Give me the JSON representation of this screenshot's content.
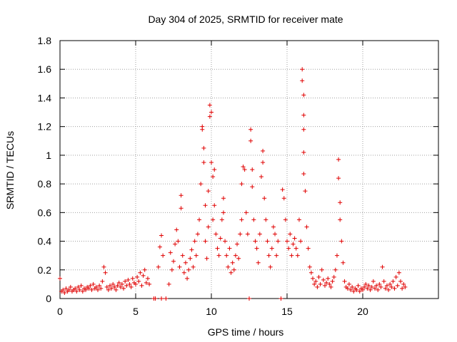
{
  "chart_data": {
    "type": "scatter",
    "title": "Day 304 of 2025, SRMTID for receiver mate",
    "xlabel": "GPS time / hours",
    "ylabel": "SRMTID / TECUs",
    "xlim": [
      0,
      25
    ],
    "ylim": [
      0,
      1.8
    ],
    "x_ticks": [
      0,
      5,
      10,
      15,
      20
    ],
    "x_tick_labels": [
      "0",
      "5",
      "10",
      "15",
      "20"
    ],
    "y_ticks": [
      0,
      0.2,
      0.4,
      0.6,
      0.8,
      1,
      1.2,
      1.4,
      1.6,
      1.8
    ],
    "y_tick_labels": [
      "0",
      "0.2",
      "0.4",
      "0.6",
      "0.8",
      "1",
      "1.2",
      "1.4",
      "1.6",
      "1.8"
    ],
    "grid": true,
    "marker": "+",
    "color": "#e00000",
    "series": [
      {
        "name": "SRMTID",
        "points": [
          [
            0.0,
            0.14
          ],
          [
            0.1,
            0.05
          ],
          [
            0.2,
            0.06
          ],
          [
            0.3,
            0.04
          ],
          [
            0.4,
            0.07
          ],
          [
            0.5,
            0.05
          ],
          [
            0.6,
            0.06
          ],
          [
            0.7,
            0.08
          ],
          [
            0.8,
            0.05
          ],
          [
            0.9,
            0.06
          ],
          [
            1.0,
            0.07
          ],
          [
            1.1,
            0.05
          ],
          [
            1.2,
            0.08
          ],
          [
            1.3,
            0.06
          ],
          [
            1.4,
            0.09
          ],
          [
            1.5,
            0.05
          ],
          [
            1.6,
            0.07
          ],
          [
            1.7,
            0.06
          ],
          [
            1.8,
            0.08
          ],
          [
            1.9,
            0.07
          ],
          [
            2.0,
            0.09
          ],
          [
            2.1,
            0.06
          ],
          [
            2.2,
            0.1
          ],
          [
            2.3,
            0.07
          ],
          [
            2.4,
            0.08
          ],
          [
            2.5,
            0.06
          ],
          [
            2.6,
            0.09
          ],
          [
            2.7,
            0.07
          ],
          [
            2.8,
            0.12
          ],
          [
            2.9,
            0.22
          ],
          [
            3.0,
            0.18
          ],
          [
            3.1,
            0.08
          ],
          [
            3.2,
            0.06
          ],
          [
            3.3,
            0.09
          ],
          [
            3.4,
            0.07
          ],
          [
            3.5,
            0.1
          ],
          [
            3.6,
            0.08
          ],
          [
            3.7,
            0.06
          ],
          [
            3.8,
            0.09
          ],
          [
            3.9,
            0.11
          ],
          [
            4.0,
            0.08
          ],
          [
            4.1,
            0.1
          ],
          [
            4.2,
            0.07
          ],
          [
            4.3,
            0.12
          ],
          [
            4.4,
            0.09
          ],
          [
            4.5,
            0.13
          ],
          [
            4.6,
            0.1
          ],
          [
            4.7,
            0.08
          ],
          [
            4.8,
            0.14
          ],
          [
            4.9,
            0.11
          ],
          [
            5.0,
            0.1
          ],
          [
            5.1,
            0.15
          ],
          [
            5.2,
            0.12
          ],
          [
            5.3,
            0.18
          ],
          [
            5.4,
            0.09
          ],
          [
            5.5,
            0.16
          ],
          [
            5.6,
            0.2
          ],
          [
            5.7,
            0.11
          ],
          [
            5.8,
            0.14
          ],
          [
            5.9,
            0.1
          ],
          [
            6.2,
            0.0
          ],
          [
            6.3,
            0.0
          ],
          [
            6.5,
            0.22
          ],
          [
            6.6,
            0.36
          ],
          [
            6.7,
            0.44
          ],
          [
            6.8,
            0.3
          ],
          [
            6.7,
            0.0
          ],
          [
            7.0,
            0.0
          ],
          [
            7.2,
            0.1
          ],
          [
            7.3,
            0.32
          ],
          [
            7.4,
            0.2
          ],
          [
            7.5,
            0.26
          ],
          [
            7.6,
            0.38
          ],
          [
            7.7,
            0.48
          ],
          [
            7.8,
            0.4
          ],
          [
            7.9,
            0.22
          ],
          [
            8.0,
            0.63
          ],
          [
            8.0,
            0.72
          ],
          [
            8.1,
            0.3
          ],
          [
            8.2,
            0.18
          ],
          [
            8.3,
            0.25
          ],
          [
            8.4,
            0.14
          ],
          [
            8.5,
            0.2
          ],
          [
            8.6,
            0.28
          ],
          [
            8.7,
            0.34
          ],
          [
            8.8,
            0.22
          ],
          [
            8.9,
            0.4
          ],
          [
            9.0,
            0.3
          ],
          [
            9.1,
            0.45
          ],
          [
            9.2,
            0.55
          ],
          [
            9.3,
            0.8
          ],
          [
            9.4,
            1.18
          ],
          [
            9.4,
            1.2
          ],
          [
            9.5,
            1.05
          ],
          [
            9.5,
            0.95
          ],
          [
            9.6,
            0.65
          ],
          [
            9.6,
            0.4
          ],
          [
            9.7,
            0.28
          ],
          [
            9.8,
            0.5
          ],
          [
            9.8,
            0.75
          ],
          [
            9.9,
            1.27
          ],
          [
            9.9,
            1.35
          ],
          [
            10.0,
            1.3
          ],
          [
            10.0,
            0.95
          ],
          [
            10.1,
            0.85
          ],
          [
            10.1,
            0.55
          ],
          [
            10.2,
            0.9
          ],
          [
            10.2,
            0.65
          ],
          [
            10.3,
            0.45
          ],
          [
            10.4,
            0.35
          ],
          [
            10.5,
            0.3
          ],
          [
            10.6,
            0.42
          ],
          [
            10.7,
            0.55
          ],
          [
            10.8,
            0.7
          ],
          [
            10.8,
            0.6
          ],
          [
            10.9,
            0.4
          ],
          [
            11.0,
            0.3
          ],
          [
            11.1,
            0.22
          ],
          [
            11.2,
            0.35
          ],
          [
            11.3,
            0.18
          ],
          [
            11.4,
            0.25
          ],
          [
            11.5,
            0.2
          ],
          [
            11.6,
            0.3
          ],
          [
            11.7,
            0.38
          ],
          [
            11.8,
            0.28
          ],
          [
            11.9,
            0.45
          ],
          [
            12.0,
            0.55
          ],
          [
            12.0,
            0.8
          ],
          [
            12.1,
            0.92
          ],
          [
            12.2,
            0.9
          ],
          [
            12.3,
            0.6
          ],
          [
            12.4,
            0.45
          ],
          [
            12.5,
            0.0
          ],
          [
            12.5,
            0.0
          ],
          [
            12.6,
            1.18
          ],
          [
            12.6,
            1.1
          ],
          [
            12.7,
            0.9
          ],
          [
            12.7,
            0.78
          ],
          [
            12.8,
            0.55
          ],
          [
            12.9,
            0.4
          ],
          [
            13.0,
            0.35
          ],
          [
            13.1,
            0.25
          ],
          [
            13.2,
            0.45
          ],
          [
            13.3,
            0.85
          ],
          [
            13.4,
            1.03
          ],
          [
            13.4,
            0.95
          ],
          [
            13.5,
            0.7
          ],
          [
            13.6,
            0.55
          ],
          [
            13.7,
            0.4
          ],
          [
            13.8,
            0.3
          ],
          [
            13.9,
            0.22
          ],
          [
            14.0,
            0.35
          ],
          [
            14.1,
            0.5
          ],
          [
            14.2,
            0.45
          ],
          [
            14.3,
            0.3
          ],
          [
            14.4,
            0.4
          ],
          [
            14.6,
            0.0
          ],
          [
            14.7,
            0.76
          ],
          [
            14.8,
            0.7
          ],
          [
            14.9,
            0.55
          ],
          [
            15.0,
            0.4
          ],
          [
            15.1,
            0.35
          ],
          [
            15.2,
            0.45
          ],
          [
            15.3,
            0.3
          ],
          [
            15.4,
            0.38
          ],
          [
            15.5,
            0.42
          ],
          [
            15.6,
            0.35
          ],
          [
            15.7,
            0.3
          ],
          [
            15.8,
            0.55
          ],
          [
            15.9,
            0.4
          ],
          [
            16.0,
            1.6
          ],
          [
            16.0,
            1.52
          ],
          [
            16.1,
            1.42
          ],
          [
            16.1,
            1.28
          ],
          [
            16.1,
            1.18
          ],
          [
            16.1,
            1.02
          ],
          [
            16.1,
            0.87
          ],
          [
            16.2,
            0.75
          ],
          [
            16.3,
            0.5
          ],
          [
            16.4,
            0.35
          ],
          [
            16.5,
            0.22
          ],
          [
            16.6,
            0.18
          ],
          [
            16.7,
            0.14
          ],
          [
            16.8,
            0.1
          ],
          [
            16.9,
            0.12
          ],
          [
            17.0,
            0.08
          ],
          [
            17.1,
            0.15
          ],
          [
            17.2,
            0.1
          ],
          [
            17.3,
            0.2
          ],
          [
            17.4,
            0.13
          ],
          [
            17.5,
            0.09
          ],
          [
            17.6,
            0.11
          ],
          [
            17.7,
            0.14
          ],
          [
            17.8,
            0.1
          ],
          [
            17.9,
            0.08
          ],
          [
            18.0,
            0.12
          ],
          [
            18.1,
            0.15
          ],
          [
            18.2,
            0.2
          ],
          [
            18.3,
            0.3
          ],
          [
            18.4,
            0.97
          ],
          [
            18.4,
            0.84
          ],
          [
            18.5,
            0.67
          ],
          [
            18.5,
            0.55
          ],
          [
            18.6,
            0.4
          ],
          [
            18.7,
            0.25
          ],
          [
            18.8,
            0.12
          ],
          [
            18.9,
            0.08
          ],
          [
            19.0,
            0.07
          ],
          [
            19.1,
            0.1
          ],
          [
            19.2,
            0.06
          ],
          [
            19.3,
            0.08
          ],
          [
            19.4,
            0.05
          ],
          [
            19.5,
            0.07
          ],
          [
            19.6,
            0.06
          ],
          [
            19.7,
            0.09
          ],
          [
            19.8,
            0.05
          ],
          [
            19.9,
            0.07
          ],
          [
            20.0,
            0.06
          ],
          [
            20.1,
            0.08
          ],
          [
            20.2,
            0.1
          ],
          [
            20.3,
            0.07
          ],
          [
            20.4,
            0.09
          ],
          [
            20.5,
            0.06
          ],
          [
            20.6,
            0.08
          ],
          [
            20.7,
            0.12
          ],
          [
            20.8,
            0.07
          ],
          [
            20.9,
            0.09
          ],
          [
            21.0,
            0.06
          ],
          [
            21.1,
            0.1
          ],
          [
            21.2,
            0.08
          ],
          [
            21.3,
            0.22
          ],
          [
            21.4,
            0.12
          ],
          [
            21.5,
            0.07
          ],
          [
            21.6,
            0.09
          ],
          [
            21.7,
            0.06
          ],
          [
            21.8,
            0.1
          ],
          [
            21.9,
            0.08
          ],
          [
            22.0,
            0.12
          ],
          [
            22.1,
            0.07
          ],
          [
            22.2,
            0.15
          ],
          [
            22.3,
            0.09
          ],
          [
            22.4,
            0.18
          ],
          [
            22.5,
            0.12
          ],
          [
            22.6,
            0.07
          ],
          [
            22.7,
            0.1
          ],
          [
            22.8,
            0.08
          ]
        ]
      }
    ]
  }
}
